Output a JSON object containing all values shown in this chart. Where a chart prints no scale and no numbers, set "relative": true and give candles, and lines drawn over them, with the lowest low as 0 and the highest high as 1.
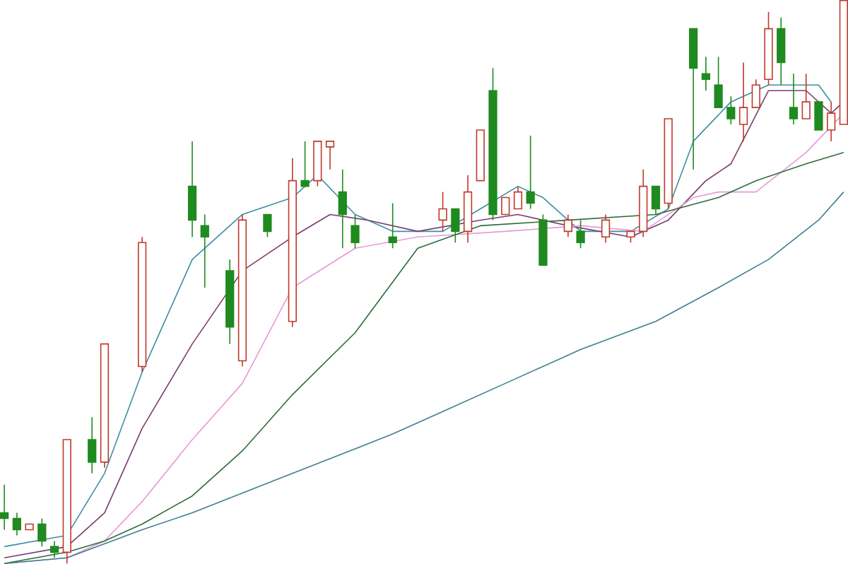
{
  "chart_data": {
    "type": "candlestick",
    "relative": true,
    "categories": [
      null,
      null,
      null,
      null,
      null,
      null,
      null,
      null,
      null,
      null,
      null,
      null,
      null,
      null,
      null,
      null,
      null,
      null,
      null,
      null,
      null,
      null,
      null,
      null,
      null,
      null,
      null,
      null,
      null,
      null,
      null,
      null,
      null,
      null,
      null,
      null,
      null,
      null,
      null,
      null,
      null,
      null,
      null,
      null,
      null,
      null,
      null,
      null,
      null,
      null,
      null,
      null,
      null,
      null,
      null,
      null,
      null,
      null,
      null,
      null,
      null,
      null,
      null,
      null,
      null,
      null,
      null,
      null
    ],
    "ohlc": [
      [
        0.09,
        0.14,
        0.06,
        0.08
      ],
      [
        0.08,
        0.09,
        0.05,
        0.06
      ],
      [
        0.06,
        0.07,
        0.06,
        0.07
      ],
      [
        0.07,
        0.08,
        0.03,
        0.04
      ],
      [
        0.03,
        0.04,
        0.01,
        0.02
      ],
      [
        0.02,
        0.22,
        0,
        0.22
      ],
      null,
      [
        0.22,
        0.26,
        0.16,
        0.18
      ],
      [
        0.18,
        0.39,
        0.17,
        0.39
      ],
      null,
      null,
      [
        0.35,
        0.58,
        0.34,
        0.57
      ],
      null,
      null,
      null,
      [
        0.67,
        0.75,
        0.58,
        0.61
      ],
      [
        0.6,
        0.62,
        0.49,
        0.58
      ],
      null,
      [
        0.52,
        0.54,
        0.39,
        0.42
      ],
      [
        0.36,
        0.62,
        0.35,
        0.61
      ],
      null,
      [
        0.62,
        0.62,
        0.58,
        0.59
      ],
      null,
      [
        0.43,
        0.72,
        0.42,
        0.68
      ],
      [
        0.68,
        0.75,
        0.67,
        0.67
      ],
      [
        0.68,
        0.75,
        0.67,
        0.75
      ],
      [
        0.74,
        0.75,
        0.7,
        0.75
      ],
      [
        0.66,
        0.7,
        0.56,
        0.62
      ],
      [
        0.6,
        0.62,
        0.56,
        0.57
      ],
      null,
      null,
      [
        0.58,
        0.64,
        0.56,
        0.57
      ],
      null,
      null,
      null,
      [
        0.61,
        0.66,
        0.59,
        0.63
      ],
      [
        0.63,
        0.63,
        0.57,
        0.59
      ],
      [
        0.59,
        0.69,
        0.57,
        0.66
      ],
      [
        0.68,
        0.77,
        0.68,
        0.77
      ],
      [
        0.84,
        0.88,
        0.61,
        0.62
      ],
      [
        0.62,
        0.65,
        0.62,
        0.65
      ],
      [
        0.63,
        0.67,
        0.63,
        0.66
      ],
      [
        0.66,
        0.76,
        0.63,
        0.64
      ],
      [
        0.61,
        0.62,
        0.53,
        0.53
      ],
      null,
      [
        0.59,
        0.62,
        0.58,
        0.61
      ],
      [
        0.59,
        0.61,
        0.56,
        0.57
      ],
      null,
      [
        0.58,
        0.62,
        0.57,
        0.61
      ],
      null,
      [
        0.58,
        0.59,
        0.57,
        0.59
      ],
      [
        0.59,
        0.7,
        0.58,
        0.67
      ],
      [
        0.67,
        0.67,
        0.62,
        0.63
      ],
      [
        0.64,
        0.79,
        0.63,
        0.79
      ],
      null,
      [
        0.95,
        0.95,
        0.7,
        0.88
      ],
      [
        0.87,
        0.9,
        0.84,
        0.86
      ],
      [
        0.85,
        0.9,
        0.81,
        0.81
      ],
      [
        0.81,
        0.83,
        0.78,
        0.79
      ],
      [
        0.78,
        0.89,
        0.75,
        0.81
      ],
      [
        0.81,
        0.86,
        0.81,
        0.85
      ],
      [
        0.86,
        0.98,
        0.85,
        0.95
      ],
      [
        0.95,
        0.97,
        0.85,
        0.89
      ],
      [
        0.81,
        0.87,
        0.78,
        0.79
      ],
      [
        0.79,
        0.87,
        0.79,
        0.82
      ],
      [
        0.82,
        0.82,
        0.77,
        0.77
      ],
      [
        0.77,
        0.82,
        0.75,
        0.8
      ],
      [
        0.78,
        1.0,
        0.78,
        1.0
      ]
    ],
    "colors": [
      "#1f8a1f",
      "#1f8a1f",
      "#c0392b",
      "#1f8a1f",
      "#1f8a1f",
      "#c0392b",
      null,
      "#1f8a1f",
      "#c0392b",
      null,
      null,
      "#c0392b",
      null,
      null,
      null,
      "#1f8a1f",
      "#1f8a1f",
      null,
      "#1f8a1f",
      "#c0392b",
      null,
      "#1f8a1f",
      null,
      "#c0392b",
      "#1f8a1f",
      "#c0392b",
      "#c0392b",
      "#1f8a1f",
      "#1f8a1f",
      null,
      null,
      "#1f8a1f",
      null,
      null,
      null,
      "#c0392b",
      "#1f8a1f",
      "#c0392b",
      "#c0392b",
      "#1f8a1f",
      "#c0392b",
      "#c0392b",
      "#1f8a1f",
      "#1f8a1f",
      null,
      "#c0392b",
      "#1f8a1f",
      null,
      "#c0392b",
      null,
      "#c0392b",
      "#c0392b",
      "#1f8a1f",
      "#c0392b",
      null,
      "#1f8a1f",
      "#1f8a1f",
      "#1f8a1f",
      "#1f8a1f",
      "#c0392b",
      "#c0392b",
      "#c0392b",
      "#1f8a1f",
      "#1f8a1f",
      "#c0392b",
      "#1f8a1f",
      "#c0392b",
      "#c0392b"
    ],
    "series": [
      {
        "type": "line",
        "color": "#3d8fa3",
        "values": [
          0.03,
          null,
          null,
          null,
          null,
          0.05,
          null,
          null,
          0.16,
          null,
          null,
          0.34,
          null,
          null,
          null,
          0.54,
          null,
          null,
          null,
          0.62,
          null,
          null,
          null,
          0.65,
          null,
          0.69,
          null,
          null,
          0.62,
          null,
          null,
          0.59,
          null,
          null,
          null,
          0.59,
          null,
          null,
          0.63,
          null,
          null,
          0.67,
          null,
          0.65,
          null,
          null,
          0.59,
          null,
          null,
          null,
          0.59,
          null,
          null,
          0.63,
          null,
          0.75,
          null,
          null,
          0.82,
          null,
          null,
          0.85,
          null,
          0.85,
          null,
          0.85,
          0.82,
          null
        ]
      },
      {
        "type": "line",
        "color": "#7a3d6e",
        "values": [
          0.01,
          null,
          null,
          null,
          null,
          0.03,
          null,
          null,
          0.09,
          null,
          null,
          0.24,
          null,
          null,
          null,
          0.39,
          null,
          null,
          null,
          0.52,
          null,
          null,
          null,
          0.58,
          null,
          null,
          0.62,
          null,
          null,
          0.61,
          null,
          null,
          null,
          0.59,
          null,
          null,
          null,
          null,
          0.61,
          null,
          null,
          0.62,
          null,
          null,
          null,
          0.6,
          null,
          null,
          null,
          null,
          0.58,
          null,
          null,
          0.61,
          null,
          null,
          0.68,
          null,
          0.71,
          null,
          null,
          0.84,
          null,
          null,
          0.84,
          null,
          0.8,
          0.82
        ]
      },
      {
        "type": "line",
        "color": "#e699d9",
        "values": [
          0,
          null,
          null,
          null,
          null,
          0.01,
          null,
          null,
          0.04,
          null,
          null,
          0.11,
          null,
          null,
          null,
          0.22,
          null,
          null,
          null,
          0.32,
          null,
          null,
          null,
          0.49,
          null,
          null,
          null,
          null,
          0.56,
          null,
          null,
          null,
          null,
          0.58,
          null,
          null,
          null,
          null,
          null,
          null,
          0.59,
          null,
          null,
          null,
          null,
          null,
          0.6,
          null,
          null,
          null,
          null,
          0.59,
          null,
          null,
          null,
          0.65,
          null,
          0.66,
          null,
          null,
          0.66,
          null,
          null,
          null,
          0.73,
          null,
          null,
          0.8
        ]
      },
      {
        "type": "line",
        "color": "#2e6b3a",
        "values": [
          0,
          null,
          null,
          null,
          null,
          0.02,
          null,
          null,
          0.04,
          null,
          null,
          0.07,
          null,
          null,
          null,
          0.12,
          null,
          null,
          null,
          0.2,
          null,
          null,
          null,
          0.3,
          null,
          null,
          null,
          null,
          0.41,
          null,
          null,
          null,
          null,
          0.56,
          null,
          null,
          null,
          null,
          0.6,
          null,
          null,
          null,
          null,
          null,
          null,
          0.61,
          null,
          null,
          null,
          null,
          null,
          null,
          0.62,
          null,
          null,
          null,
          null,
          0.65,
          null,
          null,
          0.68,
          null,
          null,
          null,
          0.71,
          null,
          null,
          0.73
        ]
      },
      {
        "type": "line",
        "color": "#3f7f8f",
        "values": [
          0,
          null,
          null,
          null,
          null,
          0.01,
          null,
          null,
          null,
          null,
          null,
          0.06,
          null,
          null,
          null,
          0.09,
          null,
          null,
          null,
          null,
          null,
          null,
          null,
          0.16,
          null,
          null,
          null,
          null,
          null,
          null,
          null,
          0.23,
          null,
          null,
          null,
          0.27,
          null,
          null,
          null,
          null,
          0.32,
          null,
          null,
          null,
          null,
          null,
          0.38,
          null,
          null,
          null,
          null,
          null,
          0.43,
          null,
          null,
          null,
          null,
          0.49,
          null,
          null,
          null,
          0.54,
          null,
          null,
          null,
          0.61,
          null,
          0.66
        ]
      }
    ]
  }
}
